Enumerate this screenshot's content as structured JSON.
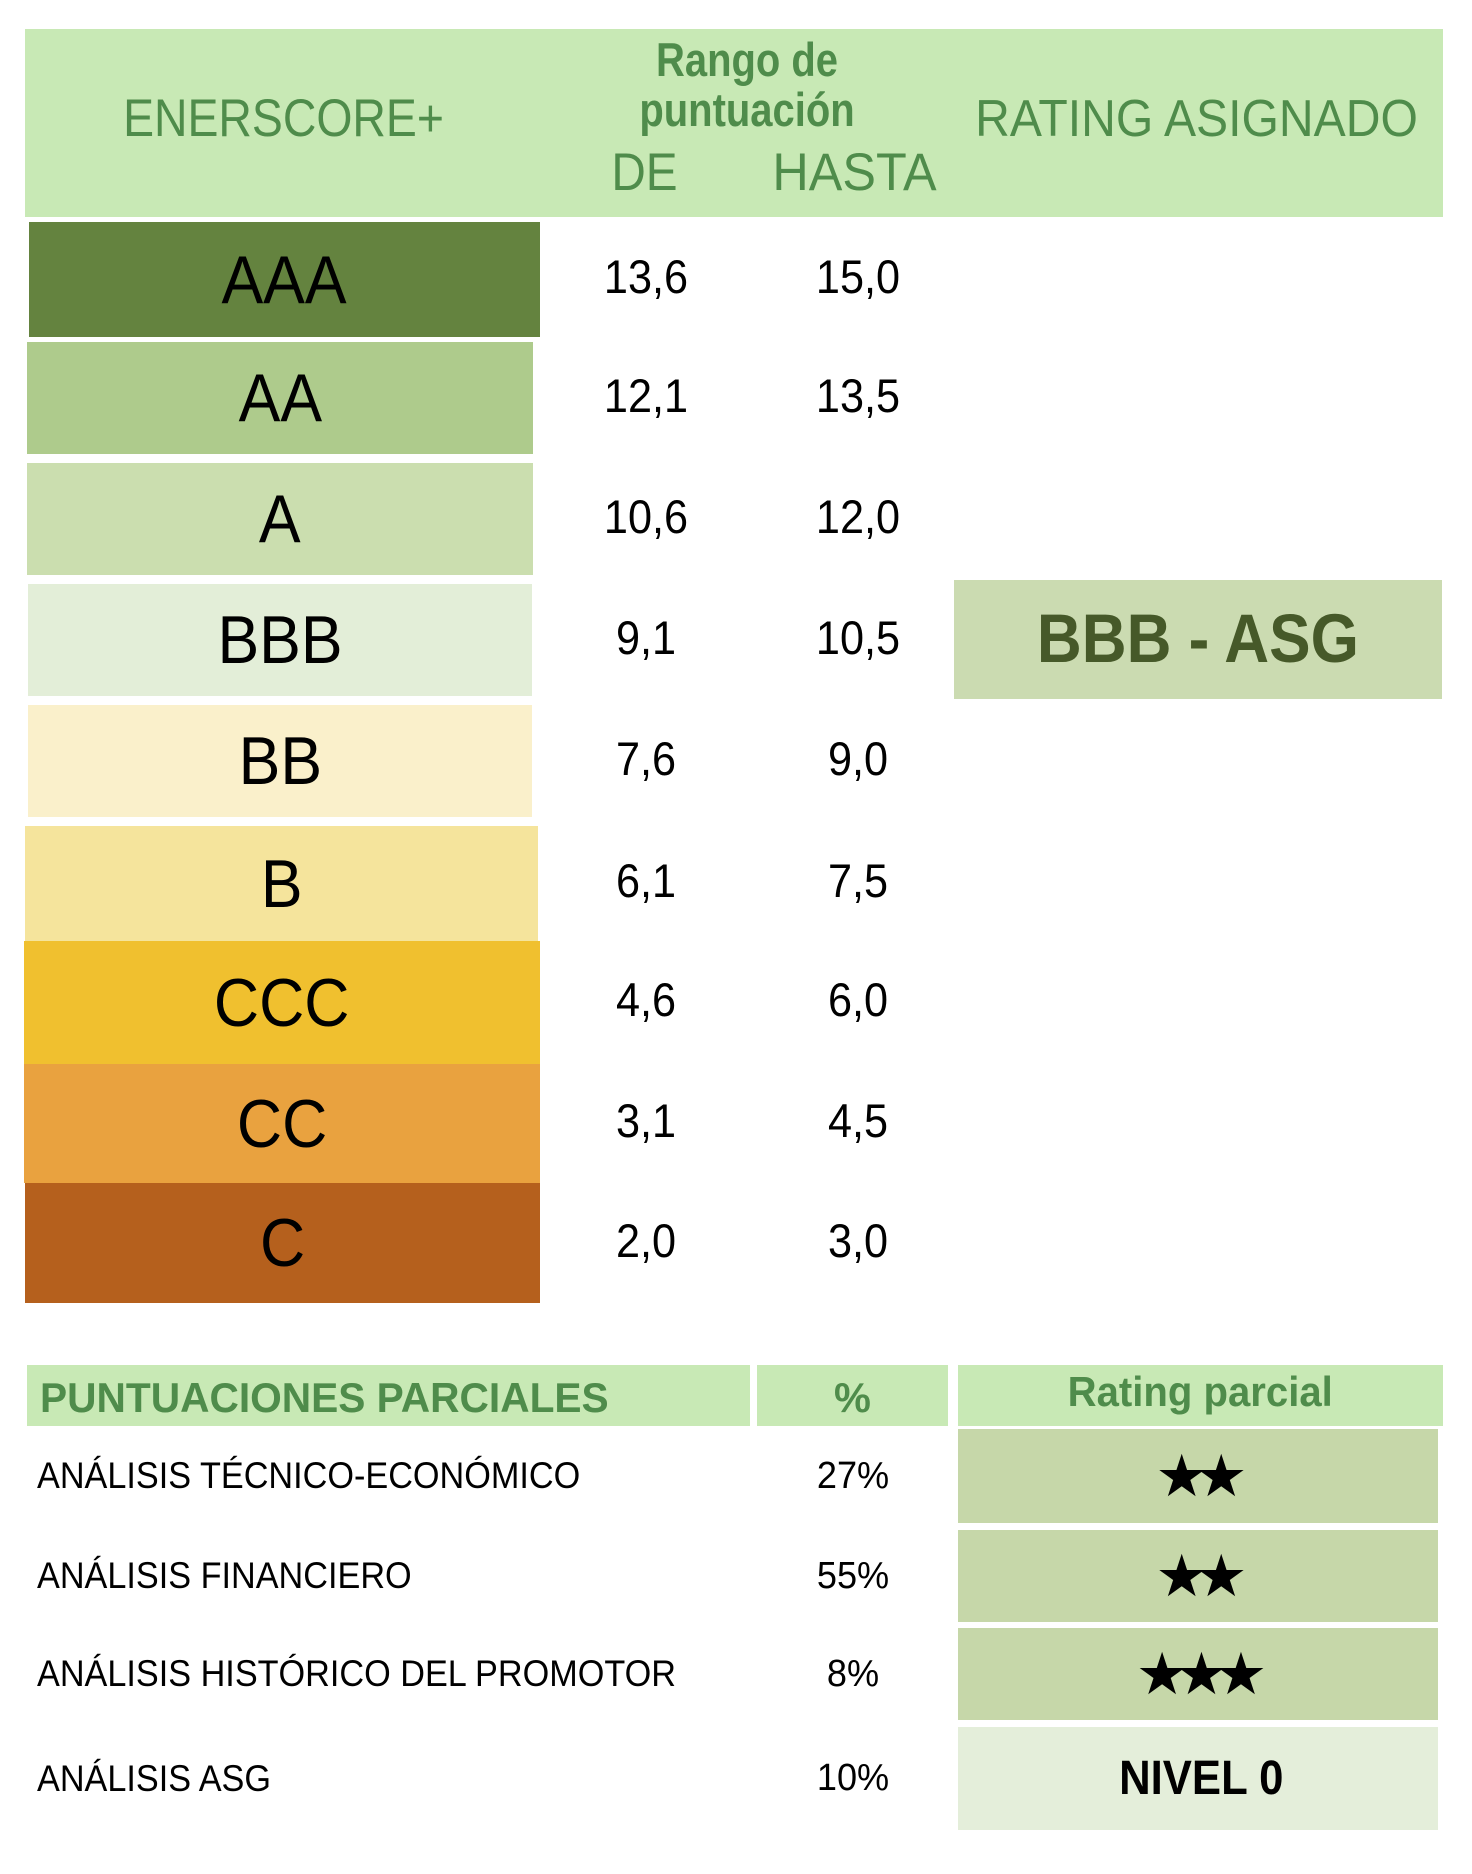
{
  "colors": {
    "header_bg": "#c8e9b5",
    "header_text": "#4f8c4b",
    "badge_bg": "#cbdbb1",
    "badge_text": "#465929",
    "partial_cell_bg": "#c6d7a9",
    "partial_cell_light_bg": "#e4eeda",
    "band_colors": {
      "AAA": "#64833f",
      "AA": "#aecb8c",
      "A": "#cbdeaf",
      "BBB": "#e3eed8",
      "BB": "#faf0cb",
      "B": "#f5e49c",
      "CCC": "#f0c02f",
      "CC": "#e9a23f",
      "C": "#b5601d"
    }
  },
  "score_table": {
    "header": {
      "scale_label": "ENERSCORE+",
      "range_label_line1": "Rango de",
      "range_label_line2": "puntuación",
      "from_label": "DE",
      "to_label": "HASTA",
      "assigned_label": "RATING ASIGNADO"
    },
    "rows": [
      {
        "grade": "AAA",
        "from": "13,6",
        "to": "15,0",
        "color": "#64833f"
      },
      {
        "grade": "AA",
        "from": "12,1",
        "to": "13,5",
        "color": "#aecb8c"
      },
      {
        "grade": "A",
        "from": "10,6",
        "to": "12,0",
        "color": "#cbdeaf"
      },
      {
        "grade": "BBB",
        "from": "9,1",
        "to": "10,5",
        "color": "#e3eed8"
      },
      {
        "grade": "BB",
        "from": "7,6",
        "to": "9,0",
        "color": "#faf0cb"
      },
      {
        "grade": "B",
        "from": "6,1",
        "to": "7,5",
        "color": "#f5e49c"
      },
      {
        "grade": "CCC",
        "from": "4,6",
        "to": "6,0",
        "color": "#f0c02f"
      },
      {
        "grade": "CC",
        "from": "3,1",
        "to": "4,5",
        "color": "#e9a23f"
      },
      {
        "grade": "C",
        "from": "2,0",
        "to": "3,0",
        "color": "#b5601d"
      }
    ]
  },
  "assigned_rating": {
    "label": "BBB - ASG"
  },
  "partial_scores": {
    "header": {
      "title": "PUNTUACIONES PARCIALES",
      "percent_label": "%",
      "rating_label": "Rating parcial"
    },
    "rows": [
      {
        "label": "ANÁLISIS TÉCNICO-ECONÓMICO",
        "percent": "27%",
        "rating": "★★",
        "rating_type": "stars"
      },
      {
        "label": "ANÁLISIS FINANCIERO",
        "percent": "55%",
        "rating": "★★",
        "rating_type": "stars"
      },
      {
        "label": "ANÁLISIS HISTÓRICO DEL PROMOTOR",
        "percent": "8%",
        "rating": "★★★",
        "rating_type": "stars"
      },
      {
        "label": "ANÁLISIS ASG",
        "percent": "10%",
        "rating": "NIVEL 0",
        "rating_type": "level"
      }
    ]
  }
}
